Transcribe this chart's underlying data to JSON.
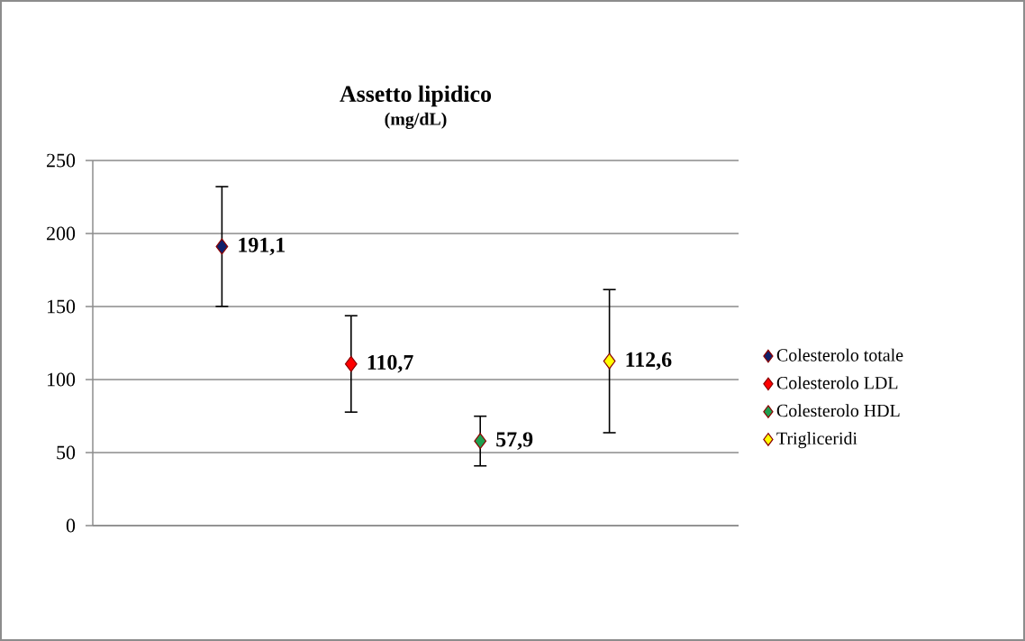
{
  "chart_data": {
    "type": "scatter",
    "title": "Assetto lipidico",
    "subtitle": "(mg/dL)",
    "categories": [
      null,
      null,
      null,
      null
    ],
    "series": [
      {
        "name": "Colesterolo totale",
        "color": "#10206a",
        "values": [
          191.1,
          null,
          null,
          null
        ],
        "errors": [
          41,
          null,
          null,
          null
        ],
        "value_labels": [
          "191,1",
          null,
          null,
          null
        ]
      },
      {
        "name": "Colesterolo LDL",
        "color": "#ff0000",
        "values": [
          null,
          110.7,
          null,
          null
        ],
        "errors": [
          null,
          33,
          null,
          null
        ],
        "value_labels": [
          null,
          "110,7",
          null,
          null
        ]
      },
      {
        "name": "Colesterolo HDL",
        "color": "#1fa050",
        "values": [
          null,
          null,
          57.9,
          null
        ],
        "errors": [
          null,
          null,
          17,
          null
        ],
        "value_labels": [
          null,
          null,
          "57,9",
          null
        ]
      },
      {
        "name": "Trigliceridi",
        "color": "#ffff00",
        "values": [
          null,
          null,
          null,
          112.6
        ],
        "errors": [
          null,
          null,
          null,
          49
        ],
        "value_labels": [
          null,
          null,
          null,
          "112,6"
        ]
      }
    ],
    "ylim": [
      0,
      250
    ],
    "yticks": [
      0,
      50,
      100,
      150,
      200,
      250
    ],
    "grid": "y",
    "legend": "right",
    "marker": "diamond",
    "tick_labels": "y"
  }
}
